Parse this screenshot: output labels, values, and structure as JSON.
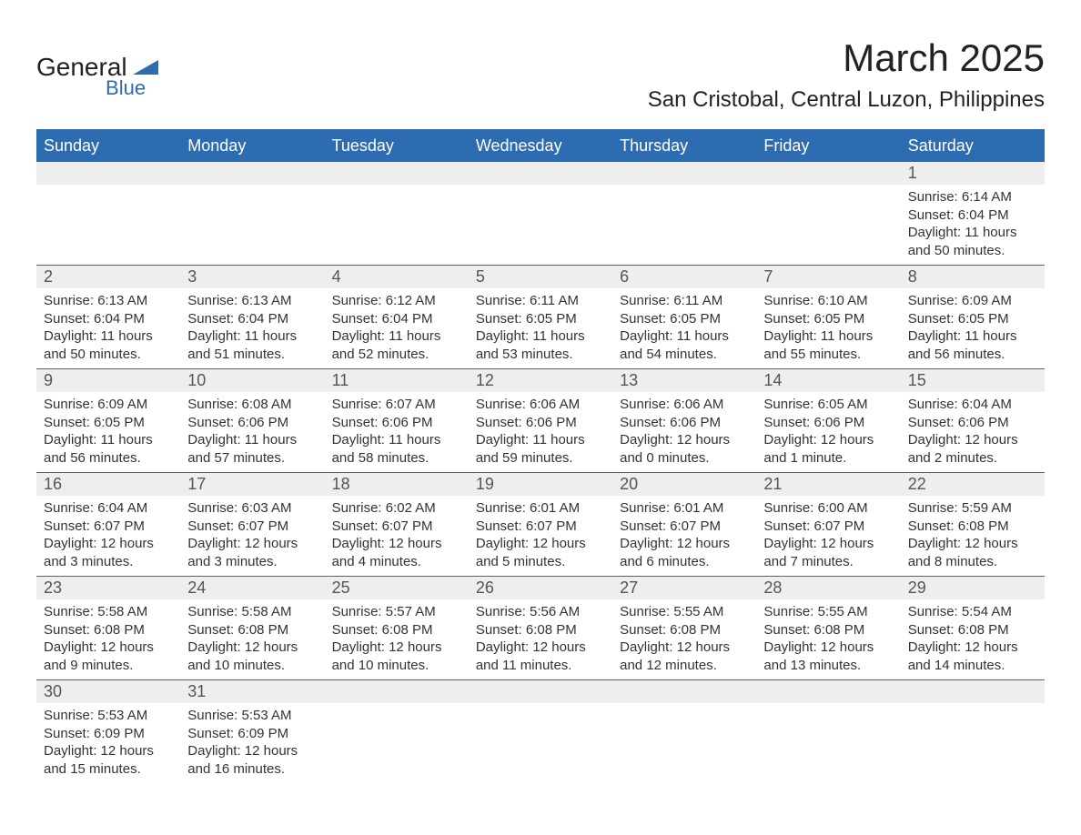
{
  "logo": {
    "text1": "General",
    "text2": "Blue",
    "text_color": "#222222",
    "blue_color": "#2e6cb1"
  },
  "title": "March 2025",
  "location": "San Cristobal, Central Luzon, Philippines",
  "colors": {
    "header_bg": "#2e6cb1",
    "header_text": "#ffffff",
    "daynum_bg": "#eeeeee",
    "daynum_text": "#555555",
    "body_text": "#333333",
    "rule": "#2e6cb1",
    "background": "#ffffff"
  },
  "fonts": {
    "title_pt": 42,
    "location_pt": 24,
    "th_pt": 18,
    "daynum_pt": 18,
    "cell_pt": 15
  },
  "daysOfWeek": [
    "Sunday",
    "Monday",
    "Tuesday",
    "Wednesday",
    "Thursday",
    "Friday",
    "Saturday"
  ],
  "weeks": [
    {
      "nums": [
        "",
        "",
        "",
        "",
        "",
        "",
        "1"
      ],
      "cells": [
        null,
        null,
        null,
        null,
        null,
        null,
        {
          "sunrise": "6:14 AM",
          "sunset": "6:04 PM",
          "daylight": "11 hours and 50 minutes."
        }
      ]
    },
    {
      "nums": [
        "2",
        "3",
        "4",
        "5",
        "6",
        "7",
        "8"
      ],
      "cells": [
        {
          "sunrise": "6:13 AM",
          "sunset": "6:04 PM",
          "daylight": "11 hours and 50 minutes."
        },
        {
          "sunrise": "6:13 AM",
          "sunset": "6:04 PM",
          "daylight": "11 hours and 51 minutes."
        },
        {
          "sunrise": "6:12 AM",
          "sunset": "6:04 PM",
          "daylight": "11 hours and 52 minutes."
        },
        {
          "sunrise": "6:11 AM",
          "sunset": "6:05 PM",
          "daylight": "11 hours and 53 minutes."
        },
        {
          "sunrise": "6:11 AM",
          "sunset": "6:05 PM",
          "daylight": "11 hours and 54 minutes."
        },
        {
          "sunrise": "6:10 AM",
          "sunset": "6:05 PM",
          "daylight": "11 hours and 55 minutes."
        },
        {
          "sunrise": "6:09 AM",
          "sunset": "6:05 PM",
          "daylight": "11 hours and 56 minutes."
        }
      ]
    },
    {
      "nums": [
        "9",
        "10",
        "11",
        "12",
        "13",
        "14",
        "15"
      ],
      "cells": [
        {
          "sunrise": "6:09 AM",
          "sunset": "6:05 PM",
          "daylight": "11 hours and 56 minutes."
        },
        {
          "sunrise": "6:08 AM",
          "sunset": "6:06 PM",
          "daylight": "11 hours and 57 minutes."
        },
        {
          "sunrise": "6:07 AM",
          "sunset": "6:06 PM",
          "daylight": "11 hours and 58 minutes."
        },
        {
          "sunrise": "6:06 AM",
          "sunset": "6:06 PM",
          "daylight": "11 hours and 59 minutes."
        },
        {
          "sunrise": "6:06 AM",
          "sunset": "6:06 PM",
          "daylight": "12 hours and 0 minutes."
        },
        {
          "sunrise": "6:05 AM",
          "sunset": "6:06 PM",
          "daylight": "12 hours and 1 minute."
        },
        {
          "sunrise": "6:04 AM",
          "sunset": "6:06 PM",
          "daylight": "12 hours and 2 minutes."
        }
      ]
    },
    {
      "nums": [
        "16",
        "17",
        "18",
        "19",
        "20",
        "21",
        "22"
      ],
      "cells": [
        {
          "sunrise": "6:04 AM",
          "sunset": "6:07 PM",
          "daylight": "12 hours and 3 minutes."
        },
        {
          "sunrise": "6:03 AM",
          "sunset": "6:07 PM",
          "daylight": "12 hours and 3 minutes."
        },
        {
          "sunrise": "6:02 AM",
          "sunset": "6:07 PM",
          "daylight": "12 hours and 4 minutes."
        },
        {
          "sunrise": "6:01 AM",
          "sunset": "6:07 PM",
          "daylight": "12 hours and 5 minutes."
        },
        {
          "sunrise": "6:01 AM",
          "sunset": "6:07 PM",
          "daylight": "12 hours and 6 minutes."
        },
        {
          "sunrise": "6:00 AM",
          "sunset": "6:07 PM",
          "daylight": "12 hours and 7 minutes."
        },
        {
          "sunrise": "5:59 AM",
          "sunset": "6:08 PM",
          "daylight": "12 hours and 8 minutes."
        }
      ]
    },
    {
      "nums": [
        "23",
        "24",
        "25",
        "26",
        "27",
        "28",
        "29"
      ],
      "cells": [
        {
          "sunrise": "5:58 AM",
          "sunset": "6:08 PM",
          "daylight": "12 hours and 9 minutes."
        },
        {
          "sunrise": "5:58 AM",
          "sunset": "6:08 PM",
          "daylight": "12 hours and 10 minutes."
        },
        {
          "sunrise": "5:57 AM",
          "sunset": "6:08 PM",
          "daylight": "12 hours and 10 minutes."
        },
        {
          "sunrise": "5:56 AM",
          "sunset": "6:08 PM",
          "daylight": "12 hours and 11 minutes."
        },
        {
          "sunrise": "5:55 AM",
          "sunset": "6:08 PM",
          "daylight": "12 hours and 12 minutes."
        },
        {
          "sunrise": "5:55 AM",
          "sunset": "6:08 PM",
          "daylight": "12 hours and 13 minutes."
        },
        {
          "sunrise": "5:54 AM",
          "sunset": "6:08 PM",
          "daylight": "12 hours and 14 minutes."
        }
      ]
    },
    {
      "nums": [
        "30",
        "31",
        "",
        "",
        "",
        "",
        ""
      ],
      "cells": [
        {
          "sunrise": "5:53 AM",
          "sunset": "6:09 PM",
          "daylight": "12 hours and 15 minutes."
        },
        {
          "sunrise": "5:53 AM",
          "sunset": "6:09 PM",
          "daylight": "12 hours and 16 minutes."
        },
        null,
        null,
        null,
        null,
        null
      ]
    }
  ],
  "labels": {
    "sunrise": "Sunrise:",
    "sunset": "Sunset:",
    "daylight": "Daylight:"
  }
}
